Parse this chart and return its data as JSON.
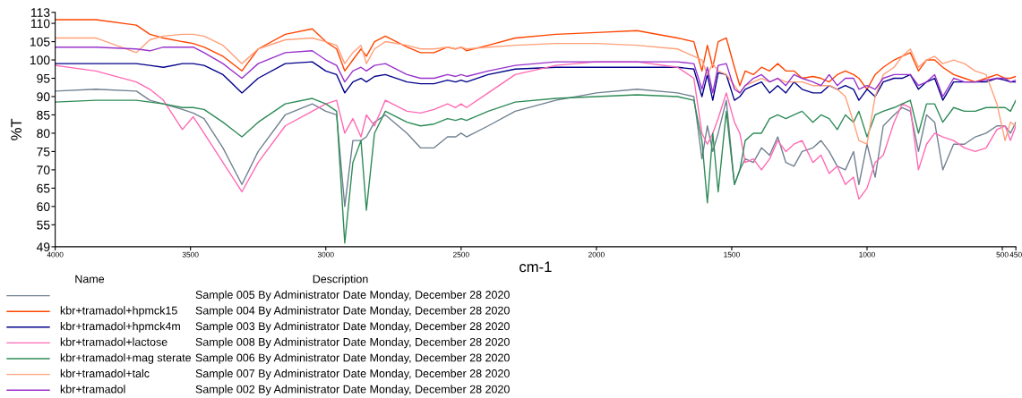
{
  "chart_data": {
    "type": "line",
    "xlabel": "cm-1",
    "ylabel": "%T",
    "legend_title": "Name",
    "legend": "bottom left",
    "grid": false,
    "marker": "none",
    "line_style": "solid",
    "xlim": [
      4000,
      450
    ],
    "xticks": [
      4000,
      3500,
      3000,
      2500,
      2000,
      1500,
      1000,
      500,
      450
    ],
    "ylim": [
      49,
      113
    ],
    "yticks": [
      49,
      55,
      60,
      65,
      70,
      75,
      80,
      85,
      90,
      95,
      100,
      105,
      110,
      113
    ],
    "annotations": [
      "Description",
      "Sample 005 By Administrator Date Monday, December 28 2020",
      "Sample 004 By Administrator Date Monday, December 28 2020",
      "Sample 003 By Administrator Date Monday, December 28 2020",
      "Sample 008 By Administrator Date Monday, December 28 2020",
      "Sample 006 By Administrator Date Monday, December 28 2020",
      "Sample 007 By Administrator Date Monday, December 28 2020",
      "Sample 002 By Administrator Date Monday, December 28 2020"
    ],
    "x": [
      4000,
      3850,
      3700,
      3650,
      3600,
      3530,
      3490,
      3450,
      3380,
      3310,
      3250,
      3150,
      3050,
      3000,
      2960,
      2930,
      2900,
      2870,
      2850,
      2820,
      2780,
      2700,
      2650,
      2600,
      2550,
      2520,
      2500,
      2480,
      2400,
      2300,
      2150,
      2000,
      1850,
      1700,
      1640,
      1610,
      1590,
      1570,
      1550,
      1520,
      1490,
      1470,
      1450,
      1420,
      1390,
      1360,
      1330,
      1300,
      1270,
      1240,
      1200,
      1170,
      1140,
      1110,
      1080,
      1050,
      1030,
      1000,
      970,
      940,
      900,
      870,
      840,
      810,
      780,
      750,
      720,
      680,
      640,
      600,
      560,
      520,
      490,
      470,
      450
    ],
    "series": [
      {
        "color": "#708090",
        "values": [
          91.5,
          92,
          91.5,
          89,
          88,
          86.5,
          85.5,
          84,
          76,
          66,
          75,
          85,
          88,
          86,
          85,
          60,
          78,
          78,
          79,
          83,
          85,
          80,
          76,
          76,
          79,
          79,
          80,
          79,
          82,
          86,
          89,
          91,
          92,
          91,
          90,
          73,
          82,
          75,
          80,
          89,
          66,
          70,
          73,
          72,
          76,
          74,
          79,
          72,
          71,
          75,
          76,
          78,
          75,
          71,
          70,
          75,
          66,
          77,
          68,
          82,
          85,
          87,
          86,
          75,
          85,
          83,
          70,
          77,
          77,
          79,
          80,
          82,
          82,
          80,
          83
        ]
      },
      {
        "name": "kbr+tramadol+hpmck15",
        "color": "#ff4500",
        "values": [
          111,
          111,
          109.5,
          107,
          106,
          105,
          104.5,
          103.5,
          101,
          97,
          103,
          107,
          108.5,
          105,
          103,
          97,
          100,
          103,
          101,
          105,
          106.5,
          103.5,
          102,
          102,
          103.5,
          103,
          103.5,
          102.5,
          104,
          106,
          107,
          107.5,
          108,
          106,
          105,
          97,
          104,
          98,
          105,
          106,
          98,
          93,
          97,
          96,
          98,
          97,
          99,
          97,
          97,
          95,
          95.5,
          95,
          94,
          96,
          97,
          96,
          95,
          92,
          96,
          98,
          100,
          101,
          102,
          97,
          100,
          100,
          98,
          96,
          95,
          94,
          95,
          96,
          95,
          95,
          95.5
        ]
      },
      {
        "name": "kbr+tramadol+hpmck4m",
        "color": "#00008b",
        "values": [
          99,
          99,
          99,
          98.5,
          98,
          99,
          99,
          98.5,
          96,
          91,
          95,
          99,
          99.5,
          97,
          96,
          91,
          94,
          95,
          94,
          95.5,
          96,
          94,
          93.5,
          93.5,
          94.5,
          94,
          94.5,
          94,
          96,
          97.5,
          98,
          98,
          98,
          98,
          97.5,
          90,
          96,
          89,
          96.5,
          96,
          89,
          90,
          92,
          93,
          94,
          91,
          93,
          91,
          94,
          92,
          91,
          91,
          93,
          92,
          93,
          92,
          89,
          92,
          90,
          94,
          95,
          95,
          96,
          92,
          94,
          95,
          89,
          94,
          94,
          94,
          94,
          95,
          94.5,
          94,
          94
        ]
      },
      {
        "name": "kbr+tramadol+lactose",
        "color": "#ff69b4",
        "values": [
          98.5,
          97,
          94,
          92,
          89,
          81,
          84.5,
          80,
          72,
          64,
          72,
          82,
          86,
          88,
          89,
          80,
          84,
          79,
          85,
          82,
          89,
          86,
          85.5,
          86.5,
          88,
          87,
          88,
          87,
          91,
          96,
          98.5,
          99.5,
          99.5,
          98,
          95,
          80,
          77,
          80,
          84,
          91,
          83,
          80,
          72,
          73,
          70,
          73,
          78,
          75,
          77,
          78,
          72,
          74,
          69,
          71,
          66,
          68,
          62,
          65,
          72,
          74,
          83,
          88,
          87,
          70,
          77,
          80,
          79,
          78,
          76,
          75,
          76,
          81,
          82,
          78,
          82
        ]
      },
      {
        "name": "kbr+tramadol+mag sterate",
        "color": "#2e8b57",
        "values": [
          88.5,
          89,
          89,
          88.5,
          88,
          87,
          87,
          86.5,
          83,
          79,
          83,
          88,
          89.5,
          88,
          86,
          50,
          72,
          78,
          59,
          80,
          86,
          83,
          82,
          82.5,
          84,
          83.5,
          84,
          83.5,
          86,
          88.5,
          89.5,
          90,
          90.5,
          90,
          89,
          78,
          61,
          80,
          64,
          86,
          66,
          70,
          78,
          80,
          80,
          84,
          85,
          84,
          85,
          86,
          83,
          85,
          84,
          81,
          85,
          83,
          86,
          79,
          85,
          86,
          87,
          88,
          89,
          80,
          88,
          88,
          83,
          87,
          86,
          86,
          87,
          87,
          87,
          86,
          89
        ]
      },
      {
        "name": "kbr+tramadol+talc",
        "color": "#ffa07a",
        "values": [
          106,
          106,
          102,
          105.5,
          106.5,
          107,
          107,
          106.5,
          104,
          99,
          103,
          105.5,
          106,
          105,
          104,
          99,
          102,
          104,
          99,
          103,
          105,
          104,
          103,
          103,
          103.5,
          103,
          103.5,
          103,
          103.5,
          104,
          104.5,
          104.5,
          104,
          103,
          101,
          100,
          96,
          99,
          97,
          96,
          93,
          91,
          93,
          94,
          95,
          94,
          95,
          94,
          94,
          94,
          93,
          93,
          93,
          92,
          90,
          83,
          78,
          77,
          90,
          96,
          98,
          101,
          103,
          98,
          100,
          101,
          99,
          100,
          99,
          97,
          96,
          88,
          78,
          83,
          82
        ]
      },
      {
        "name": "kbr+tramadol",
        "color": "#9932cc",
        "values": [
          103.5,
          103.5,
          103,
          102.5,
          103.5,
          103.5,
          103.5,
          102,
          99,
          95,
          99,
          102,
          102.5,
          100,
          98.5,
          94,
          97,
          98,
          97,
          98.5,
          99,
          96,
          95,
          95,
          96,
          95.5,
          96,
          95.5,
          97,
          98.5,
          99.5,
          99.5,
          99.5,
          99.5,
          99,
          92,
          98,
          91,
          98.5,
          99,
          92,
          91,
          93,
          95,
          96,
          94,
          95,
          93,
          96,
          95,
          94,
          93,
          96,
          93,
          95,
          95,
          92,
          93,
          92,
          95,
          96,
          96,
          96,
          93,
          94,
          96,
          90,
          95,
          94,
          94,
          94.5,
          95,
          95,
          94,
          94.5
        ]
      }
    ]
  }
}
